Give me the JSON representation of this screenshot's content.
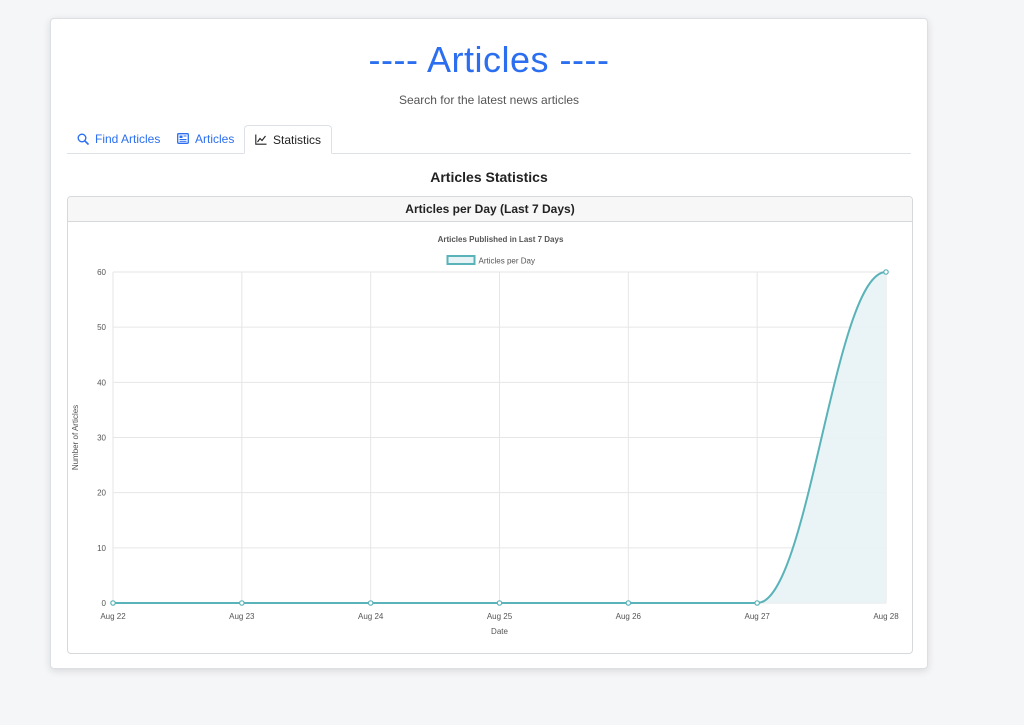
{
  "header": {
    "title": "---- Articles ----",
    "subtitle": "Search for the latest news articles"
  },
  "tabs": [
    {
      "label": "Find Articles",
      "icon": "search-icon",
      "active": false
    },
    {
      "label": "Articles",
      "icon": "newspaper-icon",
      "active": false
    },
    {
      "label": "Statistics",
      "icon": "line-chart-icon",
      "active": true
    }
  ],
  "stats": {
    "heading": "Articles Statistics",
    "panel_title": "Articles per Day (Last 7 Days)"
  },
  "colors": {
    "accent": "#2b6ef0",
    "series_line": "#5ab3b8",
    "series_fill": "#e8f3f5",
    "grid": "#e6e6e6"
  },
  "chart_data": {
    "type": "area",
    "title": "Articles Published in Last 7 Days",
    "xlabel": "Date",
    "ylabel": "Number of Articles",
    "categories": [
      "Aug 22",
      "Aug 23",
      "Aug 24",
      "Aug 25",
      "Aug 26",
      "Aug 27",
      "Aug 28"
    ],
    "series": [
      {
        "name": "Articles per Day",
        "values": [
          0,
          0,
          0,
          0,
          0,
          0,
          60
        ]
      }
    ],
    "ylim": [
      0,
      60
    ],
    "yticks": [
      0,
      10,
      20,
      30,
      40,
      50,
      60
    ],
    "grid": true,
    "legend": "top-center"
  }
}
